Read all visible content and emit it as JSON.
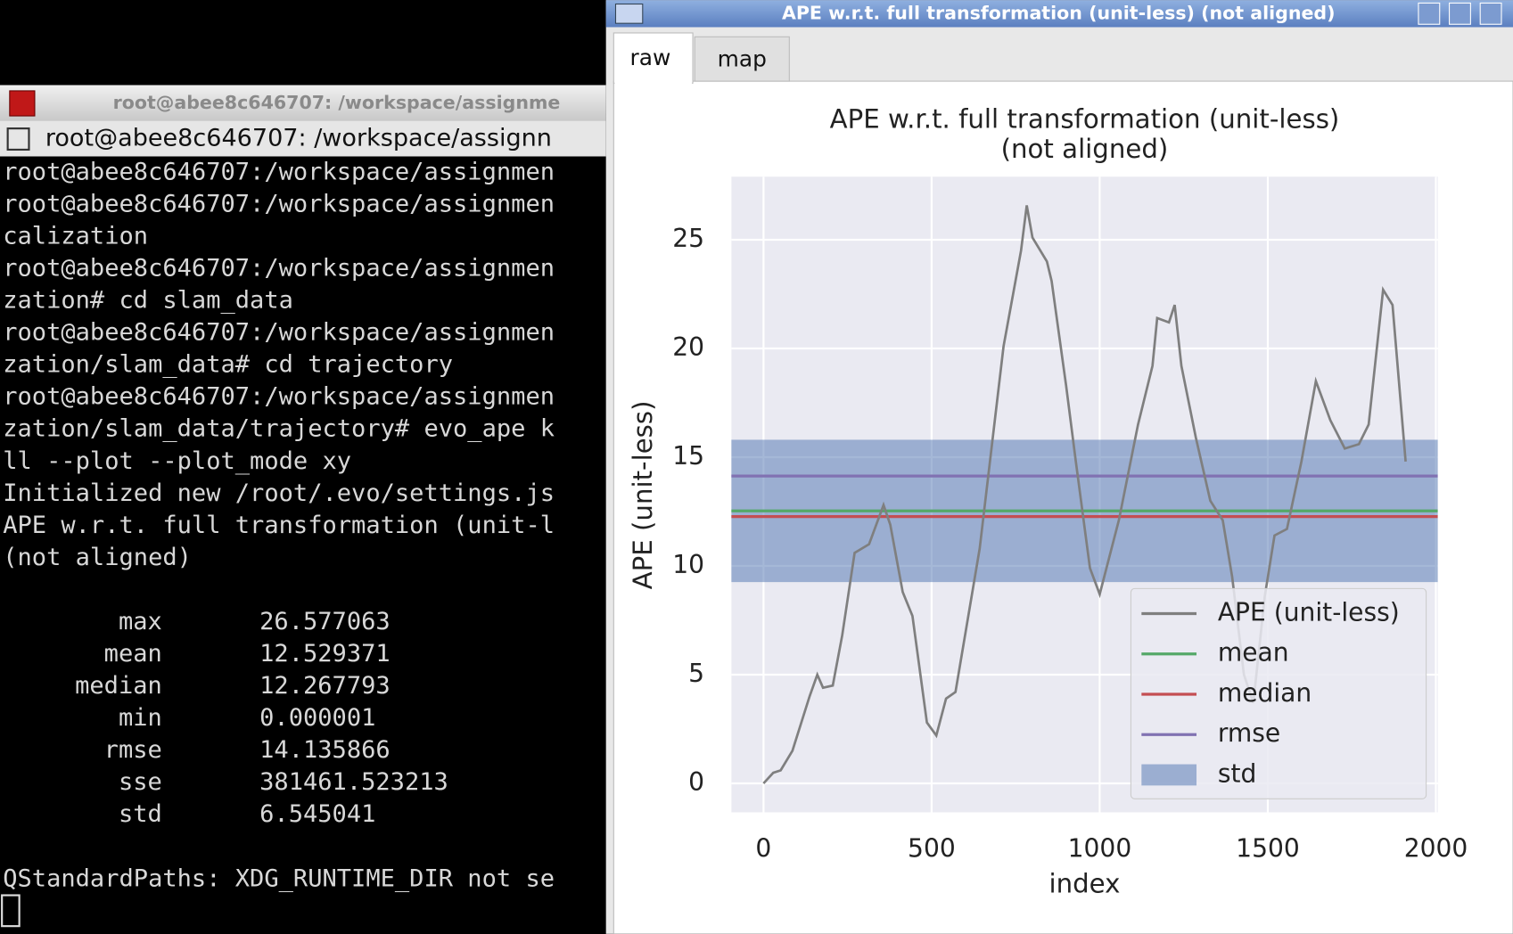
{
  "terminal": {
    "window_title": "root@abee8c646707: /workspace/assignme",
    "tab_title": "root@abee8c646707: /workspace/assignn",
    "lines": [
      "root@abee8c646707:/workspace/assignmen",
      "root@abee8c646707:/workspace/assignmen",
      "calization",
      "root@abee8c646707:/workspace/assignmen",
      "zation# cd slam_data",
      "root@abee8c646707:/workspace/assignmen",
      "zation/slam_data# cd trajectory",
      "root@abee8c646707:/workspace/assignmen",
      "zation/slam_data/trajectory# evo_ape k",
      "ll --plot --plot_mode xy"
    ],
    "notice": "Initialized new /root/.evo/settings.js",
    "result_lines": [
      "APE w.r.t. full transformation (unit-l",
      "(not aligned)"
    ],
    "stats": [
      [
        "max",
        "26.577063"
      ],
      [
        "mean",
        "12.529371"
      ],
      [
        "median",
        "12.267793"
      ],
      [
        "min",
        "0.000001"
      ],
      [
        "rmse",
        "14.135866"
      ],
      [
        "sse",
        "381461.523213"
      ],
      [
        "std",
        "6.545041"
      ]
    ],
    "footer": "QStandardPaths: XDG_RUNTIME_DIR not se"
  },
  "plot_window": {
    "title": "APE w.r.t. full transformation (unit-less) (not aligned)",
    "tabs": [
      "raw",
      "map"
    ]
  },
  "chart_data": {
    "type": "line",
    "title": [
      "APE w.r.t. full transformation (unit-less)",
      "(not aligned)"
    ],
    "x_label": "index",
    "y_label": "APE (unit-less)",
    "xlim": [
      -95.5,
      2005.5
    ],
    "ylim": [
      -1.33,
      27.9
    ],
    "xticks": [
      0,
      500,
      1000,
      1500,
      2000
    ],
    "yticks": [
      0,
      5,
      10,
      15,
      20,
      25
    ],
    "grid": true,
    "series": [
      {
        "name": "APE (unit-less)",
        "color": "#7f7f7f",
        "x": [
          0,
          29,
          51,
          86,
          137,
          160,
          177,
          206,
          234,
          271,
          314,
          357,
          377,
          414,
          443,
          486,
          514,
          543,
          571,
          643,
          714,
          766,
          783,
          800,
          843,
          857,
          900,
          929,
          971,
          1000,
          1057,
          1114,
          1157,
          1171,
          1206,
          1223,
          1243,
          1286,
          1329,
          1366,
          1394,
          1429,
          1457,
          1491,
          1520,
          1557,
          1600,
          1643,
          1686,
          1729,
          1771,
          1800,
          1843,
          1871,
          1910
        ],
        "values": [
          0,
          0.49,
          0.6,
          1.5,
          4.0,
          5.0,
          4.4,
          4.5,
          6.8,
          10.6,
          11.0,
          12.8,
          11.9,
          8.8,
          7.7,
          2.8,
          2.2,
          3.9,
          4.2,
          10.8,
          20.1,
          24.5,
          26.58,
          25.1,
          24.0,
          23.1,
          18.3,
          14.8,
          9.9,
          8.7,
          12.1,
          16.5,
          19.2,
          21.4,
          21.2,
          22.0,
          19.2,
          15.9,
          13.0,
          12.1,
          9.5,
          5.0,
          3.7,
          8.6,
          11.4,
          11.7,
          14.8,
          18.5,
          16.7,
          15.4,
          15.6,
          16.5,
          22.7,
          22.0,
          14.8
        ]
      }
    ],
    "stats": [
      {
        "name": "mean",
        "color": "#55a868",
        "value": 12.529371
      },
      {
        "name": "median",
        "color": "#c44e52",
        "value": 12.267793
      },
      {
        "name": "rmse",
        "color": "#8172b2",
        "value": 14.135866
      }
    ],
    "std": {
      "name": "std",
      "color": "#4c72b0",
      "value": 6.545041
    }
  }
}
